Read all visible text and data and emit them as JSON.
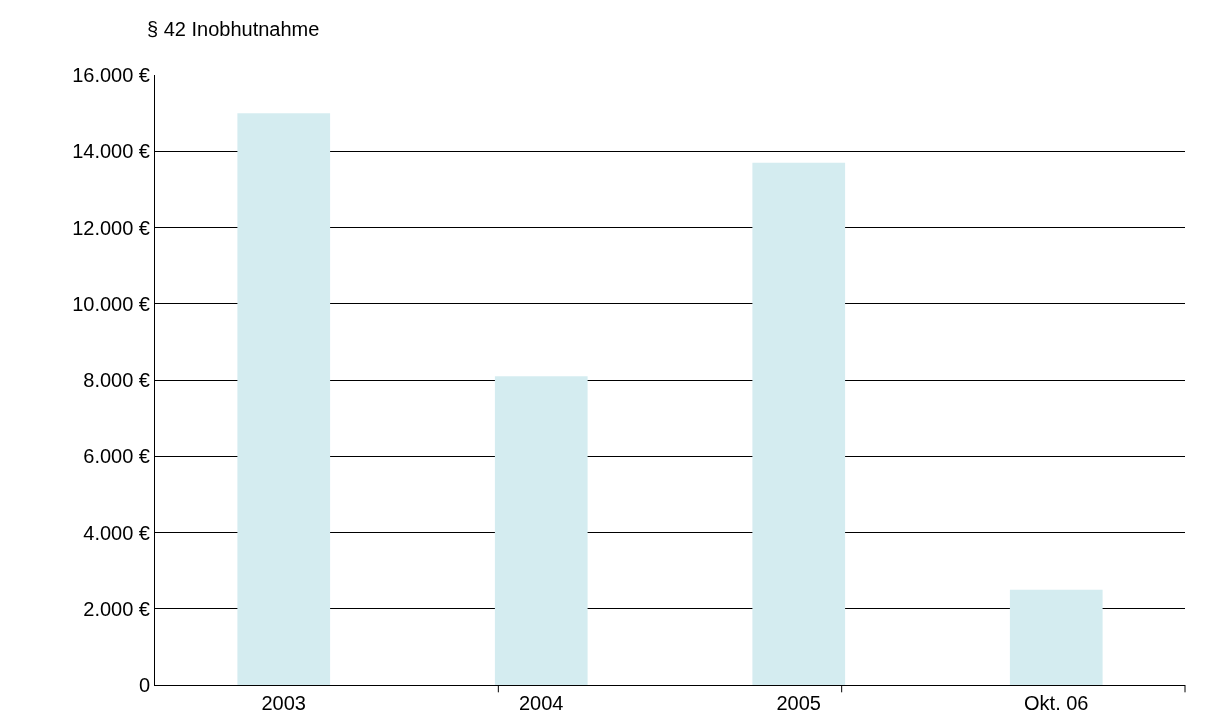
{
  "chart_data": {
    "type": "bar",
    "title": "§ 42 Inobhutnahme",
    "categories": [
      "2003",
      "2004",
      "2005",
      "Okt. 06"
    ],
    "values": [
      15000,
      8100,
      13700,
      2500
    ],
    "color": "#d4ecf0",
    "ylim": [
      0,
      16000
    ],
    "yticks": [
      {
        "value": 0,
        "label": "0"
      },
      {
        "value": 2000,
        "label": "2.000 €"
      },
      {
        "value": 4000,
        "label": "4.000 €"
      },
      {
        "value": 6000,
        "label": "6.000 €"
      },
      {
        "value": 8000,
        "label": "8.000 €"
      },
      {
        "value": 10000,
        "label": "10.000 €"
      },
      {
        "value": 12000,
        "label": "12.000 €"
      },
      {
        "value": 14000,
        "label": "14.000 €"
      },
      {
        "value": 16000,
        "label": "16.000 €"
      }
    ],
    "grid": "y"
  }
}
